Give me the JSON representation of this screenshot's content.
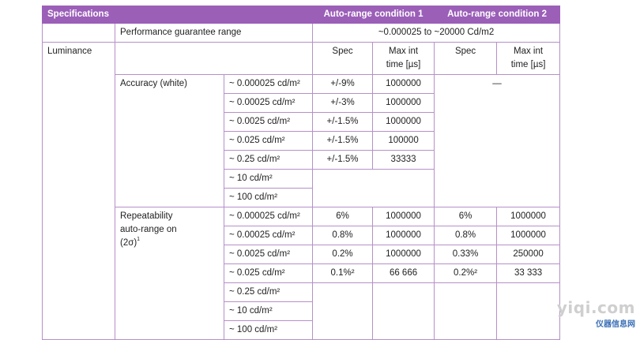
{
  "header": {
    "specifications": "Specifications",
    "cond1": "Auto-range condition 1",
    "cond2": "Auto-range condition 2"
  },
  "guarantee": {
    "label": "Performance guarantee range",
    "value": "~0.000025 to ~20000 Cd/m2"
  },
  "luminance": {
    "label": "Luminance",
    "spec": "Spec",
    "max_int_line1": "Max int",
    "max_int_line2": "time [µs]"
  },
  "accuracy": {
    "label": "Accuracy (white)",
    "cond2_value": "—",
    "rows": [
      {
        "range": "~ 0.000025 cd/m²",
        "spec1": "+/-9%",
        "time1": "1000000"
      },
      {
        "range": "~ 0.00025 cd/m²",
        "spec1": "+/-3%",
        "time1": "1000000"
      },
      {
        "range": "~ 0.0025 cd/m²",
        "spec1": "+/-1.5%",
        "time1": "1000000"
      },
      {
        "range": "~ 0.025 cd/m²",
        "spec1": "+/-1.5%",
        "time1": "100000"
      },
      {
        "range": "~ 0.25 cd/m²",
        "spec1": "+/-1.5%",
        "time1": "33333"
      },
      {
        "range": "~ 10 cd/m²",
        "spec1": "",
        "time1": ""
      },
      {
        "range": "~ 100 cd/m²",
        "spec1": "",
        "time1": ""
      }
    ]
  },
  "repeatability": {
    "line1": "Repeatability",
    "line2": "auto-range on",
    "line3": "(2σ)",
    "footnote": "1",
    "rows": [
      {
        "range": "~ 0.000025 cd/m²",
        "spec1": "6%",
        "time1": "1000000",
        "spec2": "6%",
        "time2": "1000000"
      },
      {
        "range": "~ 0.00025 cd/m²",
        "spec1": "0.8%",
        "time1": "1000000",
        "spec2": "0.8%",
        "time2": "1000000"
      },
      {
        "range": "~ 0.0025 cd/m²",
        "spec1": "0.2%",
        "time1": "1000000",
        "spec2": "0.33%",
        "time2": "250000"
      },
      {
        "range": "~ 0.025 cd/m²",
        "spec1": "0.1%²",
        "time1": "66 666",
        "spec2": "0.2%²",
        "time2": "33 333"
      },
      {
        "range": "~ 0.25 cd/m²",
        "spec1": "",
        "time1": "",
        "spec2": "",
        "time2": ""
      },
      {
        "range": "~ 10 cd/m²",
        "spec1": "",
        "time1": "",
        "spec2": "",
        "time2": ""
      },
      {
        "range": "~ 100 cd/m²",
        "spec1": "",
        "time1": "",
        "spec2": "",
        "time2": ""
      }
    ]
  },
  "watermark": {
    "site": "yiqi.com",
    "brand": "仪器信息网"
  }
}
